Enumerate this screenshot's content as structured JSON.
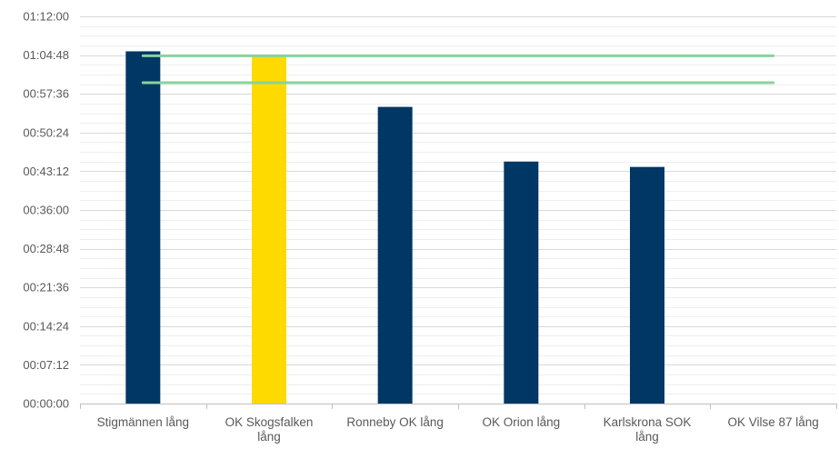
{
  "chart_data": {
    "type": "bar",
    "title": "",
    "xlabel": "",
    "ylabel": "",
    "categories": [
      [
        "Stigmännen lång"
      ],
      [
        "OK Skogsfalken",
        "lång"
      ],
      [
        "Ronneby OK lång"
      ],
      [
        "OK Orion lång"
      ],
      [
        "Karlskrona SOK",
        "lång"
      ],
      [
        "OK Vilse 87 lång"
      ]
    ],
    "values_seconds": [
      3930,
      3870,
      3310,
      2700,
      2640,
      null
    ],
    "ylim_seconds": [
      0,
      4320
    ],
    "y_ticks": [
      "00:00:00",
      "00:07:12",
      "00:14:24",
      "00:21:36",
      "00:28:48",
      "00:36:00",
      "00:43:12",
      "00:50:24",
      "00:57:36",
      "01:04:48",
      "01:12:00"
    ],
    "y_tick_step_seconds": 432,
    "minor_grid_per_major": 3,
    "bar_colors": [
      "#003764",
      "#ffda00",
      "#003764",
      "#003764",
      "#003764",
      "#003764"
    ],
    "reference_lines_seconds": [
      3880,
      3580
    ],
    "reference_line_color": "#86d39b",
    "grid": true,
    "legend": "none",
    "colors": {
      "grid_major": "#d9d9d9",
      "grid_minor": "#eeeeee",
      "axis": "#bfbfbf",
      "text": "#595959"
    }
  }
}
